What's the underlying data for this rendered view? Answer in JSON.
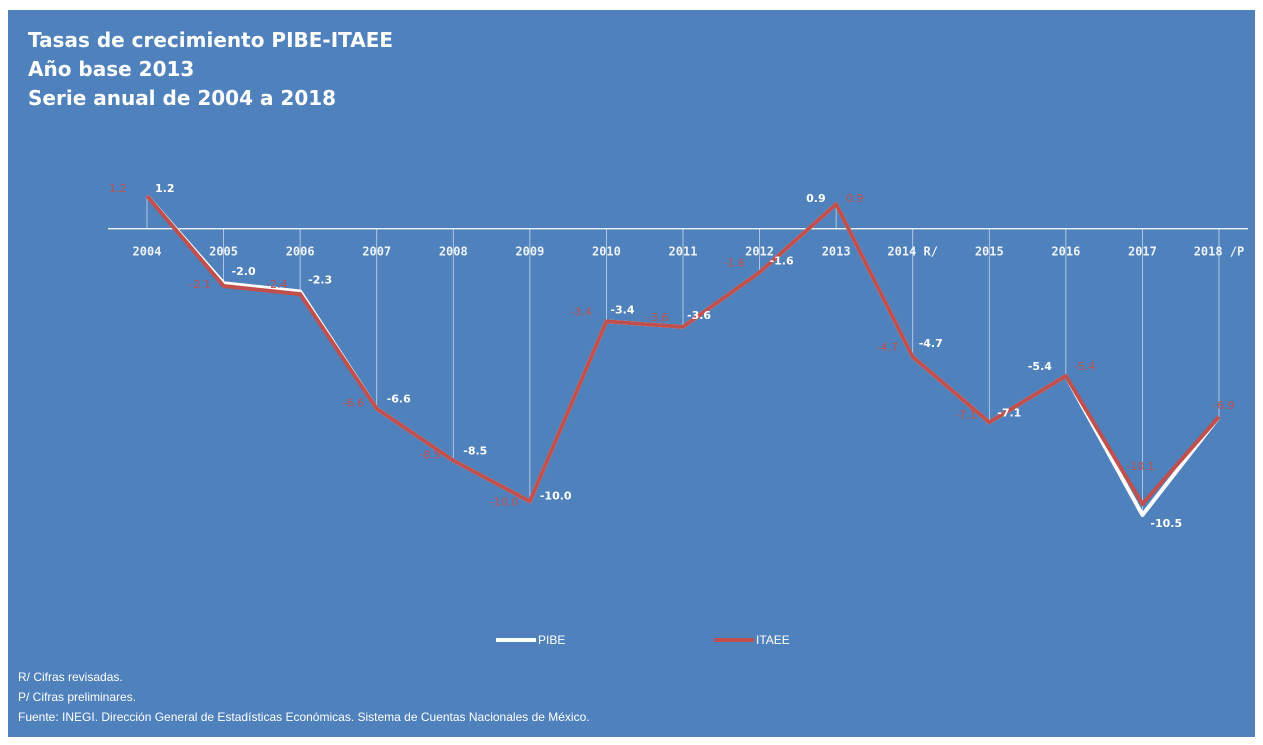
{
  "chart_data": {
    "type": "line",
    "title": "Tasas de crecimiento PIBE-ITAEE",
    "subtitle_lines": [
      "Año base 2013",
      "Serie anual de 2004 a 2018"
    ],
    "categories": [
      "2004",
      "2005",
      "2006",
      "2007",
      "2008",
      "2009",
      "2010",
      "2011",
      "2012",
      "2013",
      "2014 R/",
      "2015",
      "2016",
      "2017",
      "2018 /P"
    ],
    "series": [
      {
        "name": "PIBE",
        "color": "#ffffff",
        "values": [
          1.2,
          -2.0,
          -2.3,
          -6.6,
          -8.5,
          -10.0,
          -3.4,
          -3.6,
          -1.6,
          0.9,
          -4.7,
          -7.1,
          -5.4,
          -10.5,
          -6.9
        ],
        "labels": [
          "1.2",
          "-2.0",
          "-2.3",
          "-6.6",
          "-8.5",
          "-10.0",
          "-3.4",
          "-3.6",
          "-1.6",
          "0.9",
          "-4.7",
          "-7.1",
          "-5.4",
          "-10.5",
          ""
        ]
      },
      {
        "name": "ITAEE",
        "color": "#c0504d",
        "values": [
          1.2,
          -2.1,
          -2.4,
          -6.6,
          -8.5,
          -10.0,
          -3.4,
          -3.6,
          -1.6,
          0.9,
          -4.7,
          -7.1,
          -5.4,
          -10.1,
          -6.9
        ],
        "labels": [
          "1.2",
          "-2.1",
          "-2.4",
          "-6.6",
          "-8.5",
          "-10.0",
          "-3.4",
          "-3.6",
          "-1.6",
          "0.9",
          "-4.7",
          "-7.1",
          "-5.4",
          "-10.1",
          "-6.9"
        ]
      }
    ],
    "ylim": [
      -13,
      3
    ],
    "grid": false,
    "legend_position": "bottom-center",
    "drop_lines": true
  },
  "notes": [
    "R/ Cifras revisadas.",
    "P/ Cifras preliminares.",
    "Fuente: INEGI. Dirección General de Estadísticas Económicas. Sistema de Cuentas Nacionales de  México."
  ],
  "colors": {
    "background": "#4f81bd",
    "axis": "#ffffff",
    "pibe": "#ffffff",
    "itaee": "#c0504d"
  }
}
